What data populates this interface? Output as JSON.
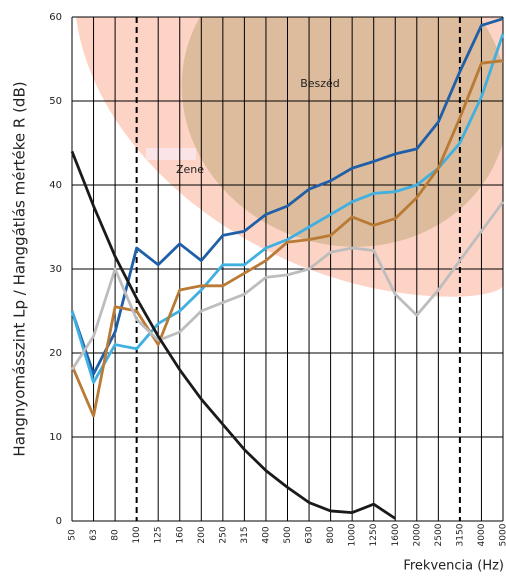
{
  "chart_data": {
    "type": "line",
    "y_label": "Hangnyomásszint Lp / Hanggátlás mértéke R (dB)",
    "x_label": "Frekvencia (Hz)",
    "annotations": [
      "Zene",
      "Beszéd"
    ],
    "categories": [
      "50",
      "63",
      "80",
      "100",
      "125",
      "160",
      "200",
      "250",
      "315",
      "400",
      "500",
      "630",
      "800",
      "1000",
      "1250",
      "1600",
      "2000",
      "2500",
      "3150",
      "4000",
      "5000"
    ],
    "ylim": [
      0,
      60
    ],
    "yticks": [
      0,
      10,
      20,
      30,
      40,
      50,
      60
    ],
    "grid": true,
    "dashed_categories": [
      "100",
      "3150"
    ],
    "series": [
      {
        "color": "#1f5fa8",
        "values": [
          25,
          17.5,
          22.5,
          32.5,
          30.5,
          33,
          31,
          34,
          34.5,
          36.5,
          37.5,
          39.5,
          40.5,
          42,
          42.8,
          43.7,
          44.3,
          47.5,
          53.5,
          59,
          59.8
        ]
      },
      {
        "color": "#3fb0e0",
        "values": [
          25,
          16.5,
          21,
          20.5,
          23.5,
          25,
          27.5,
          30.5,
          30.5,
          32.5,
          33.5,
          35,
          36.5,
          38,
          39,
          39.2,
          40,
          42,
          45,
          50.5,
          58
        ]
      },
      {
        "color": "#b87a35",
        "values": [
          18.5,
          12.5,
          25.5,
          25,
          21,
          27.5,
          28,
          28,
          29.5,
          31,
          33.2,
          33.5,
          34,
          36.2,
          35.2,
          36,
          38.5,
          42,
          48,
          54.5,
          54.8
        ]
      },
      {
        "color": "#bdbdbd",
        "values": [
          18,
          22,
          30,
          24,
          21.5,
          22.5,
          25,
          26,
          27,
          29,
          29.3,
          30,
          32,
          32.5,
          32.2,
          27,
          24.5,
          27.5,
          31,
          34.5,
          38
        ]
      },
      {
        "color": "#1a1a1a",
        "values": [
          44,
          37.5,
          31.5,
          26.5,
          22,
          18,
          14.5,
          11.5,
          8.5,
          6,
          4,
          2.2,
          1.2,
          1,
          2,
          0.3,
          null,
          null,
          null,
          null,
          null
        ]
      }
    ]
  }
}
